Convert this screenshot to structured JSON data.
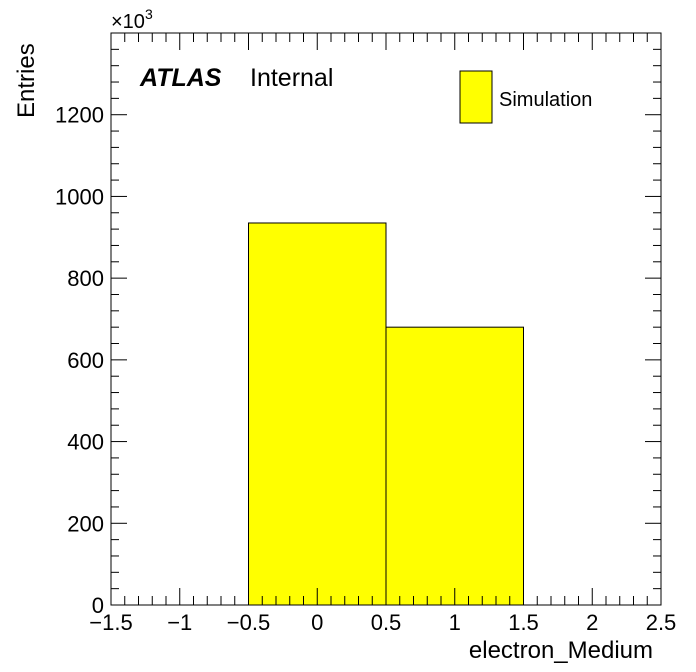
{
  "chart_data": {
    "type": "bar",
    "histogram": true,
    "bin_edges": [
      -0.5,
      0.5,
      1.5
    ],
    "values": [
      935,
      680
    ],
    "value_scale_label": "×10",
    "value_scale_exp": "3",
    "xlim": [
      -1.5,
      2.5
    ],
    "ylim": [
      0,
      1400
    ],
    "x_ticks": [
      -1.5,
      -1,
      -0.5,
      0,
      0.5,
      1,
      1.5,
      2,
      2.5
    ],
    "x_tick_labels": [
      "−1.5",
      "−1",
      "−0.5",
      "0",
      "0.5",
      "1",
      "1.5",
      "2",
      "2.5"
    ],
    "y_ticks": [
      0,
      200,
      400,
      600,
      800,
      1000,
      1200
    ],
    "y_tick_labels": [
      "0",
      "200",
      "400",
      "600",
      "800",
      "1000",
      "1200"
    ],
    "xlabel": "electron_Medium",
    "ylabel": "Entries",
    "atlas_label": "ATLAS",
    "atlas_sublabel": "Internal",
    "legend": [
      {
        "name": "Simulation",
        "color": "#ffff00"
      }
    ],
    "legend_position": "top-right",
    "fill_color": "#ffff00",
    "grid": false
  }
}
